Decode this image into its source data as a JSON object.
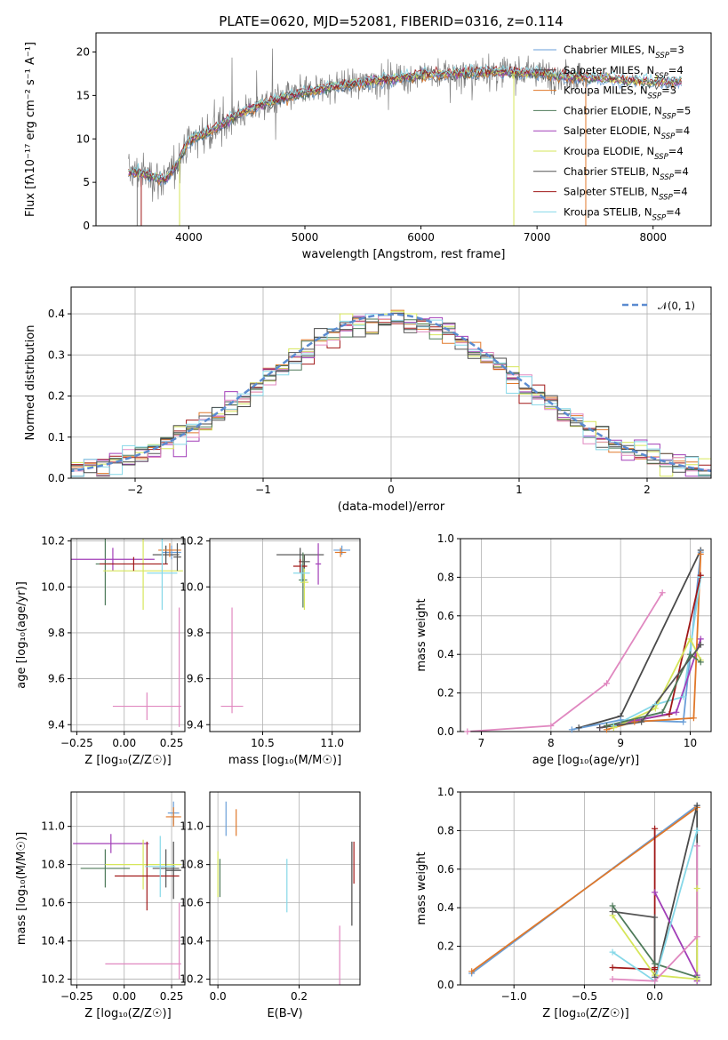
{
  "figure": {
    "title": "PLATE=0620, MJD=52081, FIBERID=0316, z=0.114"
  },
  "colors": {
    "chabrier_miles": "#6a9fd8",
    "salpeter_miles": "#4a4a4a",
    "kroupa_miles": "#e0782a",
    "chabrier_elodie": "#4e7a5a",
    "salpeter_elodie": "#a23fb8",
    "kroupa_elodie": "#d6e65a",
    "chabrier_stelib": "#555555",
    "salpeter_stelib": "#a01818",
    "kroupa_stelib": "#86d8e8",
    "extra_pink": "#e088c0",
    "data_grey": "#7f7f7f",
    "gauss": "#5b8bd0"
  },
  "chart_data": [
    {
      "type": "line",
      "id": "spectrum",
      "title": "PLATE=0620, MJD=52081, FIBERID=0316, z=0.114",
      "xlabel": "wavelength [Angstrom, rest frame]",
      "ylabel": "Flux [fλ10⁻¹⁷ erg cm⁻² s⁻¹ A⁻¹]",
      "xlim": [
        3200,
        8500
      ],
      "ylim": [
        0,
        22.2
      ],
      "xticks": [
        4000,
        5000,
        6000,
        7000,
        8000
      ],
      "yticks": [
        0,
        5,
        10,
        15,
        20
      ],
      "legend_position": "top-right",
      "series": [
        {
          "name": "Chabrier MILES, N_SSP=3",
          "color_key": "chabrier_miles"
        },
        {
          "name": "Salpeter MILES, N_SSP=4",
          "color_key": "salpeter_miles"
        },
        {
          "name": "Kroupa MILES, N_SSP=3",
          "color_key": "kroupa_miles"
        },
        {
          "name": "Chabrier ELODIE, N_SSP=5",
          "color_key": "chabrier_elodie"
        },
        {
          "name": "Salpeter ELODIE, N_SSP=4",
          "color_key": "salpeter_elodie"
        },
        {
          "name": "Kroupa ELODIE, N_SSP=4",
          "color_key": "kroupa_elodie"
        },
        {
          "name": "Chabrier STELIB, N_SSP=4",
          "color_key": "chabrier_stelib"
        },
        {
          "name": "Salpeter STELIB, N_SSP=4",
          "color_key": "salpeter_stelib"
        },
        {
          "name": "Kroupa STELIB, N_SSP=4",
          "color_key": "kroupa_stelib"
        }
      ],
      "continuum_x": [
        3500,
        3600,
        3700,
        3800,
        3900,
        4000,
        4200,
        4400,
        4600,
        4800,
        5000,
        5200,
        5500,
        5800,
        6000,
        6300,
        6600,
        7000,
        7200,
        7500,
        7800,
        8000,
        8250
      ],
      "continuum_y": [
        6.2,
        6.0,
        5.6,
        5.2,
        7.2,
        9.8,
        11.0,
        12.6,
        13.8,
        14.6,
        15.3,
        15.9,
        16.5,
        17.0,
        17.4,
        17.5,
        17.7,
        17.6,
        17.2,
        17.0,
        16.7,
        16.5,
        16.6
      ]
    },
    {
      "type": "histogram",
      "id": "residuals",
      "xlabel": "(data-model)/error",
      "ylabel": "Normed distribution",
      "xlim": [
        -2.5,
        2.5
      ],
      "ylim": [
        0,
        0.465
      ],
      "xticks": [
        -2,
        -1,
        0,
        1,
        2
      ],
      "yticks": [
        0.0,
        0.1,
        0.2,
        0.3,
        0.4
      ],
      "legend": [
        {
          "name": "𝒩(0, 1)",
          "style": "dashed",
          "color_key": "gauss"
        }
      ],
      "legend_position": "top-right",
      "bin_width": 0.1,
      "gaussian": {
        "mean": 0,
        "sigma": 1
      }
    },
    {
      "type": "scatter",
      "id": "age_vs_z",
      "xlabel": "Z [log₁₀(Z/Z☉)]",
      "ylabel": "age  [log₁₀(age/yr)]",
      "xlim": [
        -0.28,
        0.32
      ],
      "ylim": [
        9.37,
        10.21
      ],
      "xticks": [
        -0.25,
        0.0,
        0.25
      ],
      "yticks": [
        9.4,
        9.6,
        9.8,
        10.0,
        10.2
      ],
      "points": [
        {
          "c": "chabrier_miles",
          "x": 0.25,
          "y": 10.15,
          "xe": 0.05,
          "ye": 0.03
        },
        {
          "c": "salpeter_miles",
          "x": 0.22,
          "y": 10.14,
          "xe": 0.07,
          "ye": 0.04
        },
        {
          "c": "kroupa_miles",
          "x": 0.24,
          "y": 10.16,
          "xe": 0.06,
          "ye": 0.03
        },
        {
          "c": "chabrier_elodie",
          "x": -0.1,
          "y": 10.1,
          "xe": 0.05,
          "ye": 0.18
        },
        {
          "c": "salpeter_elodie",
          "x": -0.06,
          "y": 10.12,
          "xe": 0.22,
          "ye": 0.05
        },
        {
          "c": "kroupa_elodie",
          "x": 0.1,
          "y": 10.07,
          "xe": 0.21,
          "ye": 0.17
        },
        {
          "c": "chabrier_stelib",
          "x": 0.28,
          "y": 10.13,
          "xe": 0.02,
          "ye": 0.06
        },
        {
          "c": "salpeter_stelib",
          "x": 0.05,
          "y": 10.1,
          "xe": 0.18,
          "ye": 0.03
        },
        {
          "c": "kroupa_stelib",
          "x": 0.2,
          "y": 10.06,
          "xe": 0.08,
          "ye": 0.16
        },
        {
          "c": "extra_pink",
          "x": 0.12,
          "y": 9.48,
          "xe": 0.18,
          "ye": 0.06
        },
        {
          "c": "extra_pink",
          "x": 0.29,
          "y": 9.65,
          "xe": 0.0,
          "ye": 0.26
        }
      ]
    },
    {
      "type": "scatter",
      "id": "age_vs_mass",
      "xlabel": "mass [log₁₀(M/M☉)]",
      "xlim": [
        10.12,
        11.2
      ],
      "ylim": [
        9.37,
        10.21
      ],
      "xticks": [
        10.5,
        11.0
      ],
      "yticks": [
        9.4,
        9.6,
        9.8,
        10.0,
        10.2
      ],
      "points": [
        {
          "c": "chabrier_miles",
          "x": 11.07,
          "y": 10.16,
          "xe": 0.06,
          "ye": 0.02
        },
        {
          "c": "salpeter_miles",
          "x": 10.77,
          "y": 10.14,
          "xe": 0.17,
          "ye": 0.03
        },
        {
          "c": "kroupa_miles",
          "x": 11.06,
          "y": 10.15,
          "xe": 0.04,
          "ye": 0.02
        },
        {
          "c": "chabrier_elodie",
          "x": 10.79,
          "y": 10.03,
          "xe": 0.03,
          "ye": 0.12
        },
        {
          "c": "salpeter_elodie",
          "x": 10.9,
          "y": 10.1,
          "xe": 0.02,
          "ye": 0.09
        },
        {
          "c": "kroupa_elodie",
          "x": 10.8,
          "y": 10.02,
          "xe": 0.03,
          "ye": 0.12
        },
        {
          "c": "chabrier_stelib",
          "x": 10.8,
          "y": 10.11,
          "xe": 0.04,
          "ye": 0.03
        },
        {
          "c": "salpeter_stelib",
          "x": 10.77,
          "y": 10.09,
          "xe": 0.05,
          "ye": 0.03
        },
        {
          "c": "kroupa_stelib",
          "x": 10.78,
          "y": 10.06,
          "xe": 0.06,
          "ye": 0.04
        },
        {
          "c": "extra_pink",
          "x": 10.28,
          "y": 9.48,
          "xe": 0.08,
          "ye": 0.0
        },
        {
          "c": "extra_pink",
          "x": 10.28,
          "y": 9.68,
          "xe": 0.0,
          "ye": 0.23
        }
      ]
    },
    {
      "type": "line",
      "id": "mass_weight_vs_age",
      "xlabel": "age  [log₁₀(age/yr)]",
      "ylabel": "mass weight",
      "xlim": [
        6.7,
        10.3
      ],
      "ylim": [
        0,
        1
      ],
      "xticks": [
        7,
        8,
        9,
        10
      ],
      "yticks": [
        0.0,
        0.2,
        0.4,
        0.6,
        0.8,
        1.0
      ],
      "series": [
        {
          "c": "extra_pink",
          "x": [
            6.8,
            8.0,
            8.8,
            9.6
          ],
          "y": [
            0.0,
            0.03,
            0.25,
            0.72
          ]
        },
        {
          "c": "salpeter_miles",
          "x": [
            8.4,
            9.0,
            10.15
          ],
          "y": [
            0.02,
            0.08,
            0.94
          ]
        },
        {
          "c": "chabrier_miles",
          "x": [
            8.3,
            9.0,
            9.9,
            10.15
          ],
          "y": [
            0.01,
            0.06,
            0.05,
            0.93
          ]
        },
        {
          "c": "kroupa_miles",
          "x": [
            8.8,
            9.2,
            10.05,
            10.15
          ],
          "y": [
            0.01,
            0.05,
            0.07,
            0.92
          ]
        },
        {
          "c": "kroupa_stelib",
          "x": [
            8.9,
            9.5,
            9.9,
            10.15
          ],
          "y": [
            0.03,
            0.14,
            0.18,
            0.8
          ]
        },
        {
          "c": "salpeter_stelib",
          "x": [
            8.8,
            9.7,
            10.15
          ],
          "y": [
            0.03,
            0.09,
            0.81
          ]
        },
        {
          "c": "salpeter_elodie",
          "x": [
            8.7,
            9.8,
            10.15
          ],
          "y": [
            0.02,
            0.1,
            0.48
          ]
        },
        {
          "c": "kroupa_elodie",
          "x": [
            8.9,
            9.5,
            10.0,
            10.15
          ],
          "y": [
            0.02,
            0.12,
            0.48,
            0.37
          ]
        },
        {
          "c": "chabrier_elodie",
          "x": [
            8.8,
            9.6,
            10.0,
            10.15
          ],
          "y": [
            0.03,
            0.1,
            0.4,
            0.36
          ]
        },
        {
          "c": "chabrier_stelib",
          "x": [
            8.7,
            9.3,
            10.15
          ],
          "y": [
            0.02,
            0.05,
            0.45
          ]
        }
      ]
    },
    {
      "type": "scatter",
      "id": "mass_vs_z",
      "xlabel": "Z [log₁₀(Z/Z☉)]",
      "ylabel": "mass [log₁₀(M/M☉)]",
      "xlim": [
        -0.28,
        0.32
      ],
      "ylim": [
        10.17,
        11.18
      ],
      "xticks": [
        -0.25,
        0.0,
        0.25
      ],
      "yticks": [
        10.2,
        10.4,
        10.6,
        10.8,
        11.0
      ],
      "points": [
        {
          "c": "chabrier_miles",
          "x": 0.26,
          "y": 11.07,
          "xe": 0.03,
          "ye": 0.06
        },
        {
          "c": "salpeter_miles",
          "x": 0.26,
          "y": 10.77,
          "xe": 0.04,
          "ye": 0.15
        },
        {
          "c": "kroupa_miles",
          "x": 0.26,
          "y": 11.05,
          "xe": 0.04,
          "ye": 0.05
        },
        {
          "c": "chabrier_elodie",
          "x": -0.1,
          "y": 10.78,
          "xe": 0.13,
          "ye": 0.1
        },
        {
          "c": "salpeter_elodie",
          "x": -0.07,
          "y": 10.91,
          "xe": 0.2,
          "ye": 0.05
        },
        {
          "c": "kroupa_elodie",
          "x": 0.1,
          "y": 10.8,
          "xe": 0.2,
          "ye": 0.13
        },
        {
          "c": "chabrier_stelib",
          "x": 0.22,
          "y": 10.78,
          "xe": 0.07,
          "ye": 0.1
        },
        {
          "c": "salpeter_stelib",
          "x": 0.12,
          "y": 10.74,
          "xe": 0.17,
          "ye": 0.18
        },
        {
          "c": "kroupa_stelib",
          "x": 0.19,
          "y": 10.79,
          "xe": 0.08,
          "ye": 0.16
        },
        {
          "c": "extra_pink",
          "x": 0.1,
          "y": 10.28,
          "xe": 0.2,
          "ye": 0.0
        },
        {
          "c": "extra_pink",
          "x": 0.29,
          "y": 10.4,
          "xe": 0.0,
          "ye": 0.2
        }
      ]
    },
    {
      "type": "scatter",
      "id": "mass_vs_ebv",
      "xlabel": "E(B-V)",
      "xlim": [
        -0.02,
        0.35
      ],
      "ylim": [
        10.17,
        11.18
      ],
      "xticks": [
        0.0,
        0.2
      ],
      "yticks": [
        10.2,
        10.4,
        10.6,
        10.8,
        11.0
      ],
      "points": [
        {
          "c": "chabrier_miles",
          "x": 0.02,
          "y": 11.04,
          "ye": 0.09
        },
        {
          "c": "kroupa_miles",
          "x": 0.045,
          "y": 11.02,
          "ye": 0.07
        },
        {
          "c": "chabrier_elodie",
          "x": 0.005,
          "y": 10.73,
          "ye": 0.1
        },
        {
          "c": "kroupa_elodie",
          "x": 0.0,
          "y": 10.75,
          "ye": 0.12
        },
        {
          "c": "kroupa_stelib",
          "x": 0.17,
          "y": 10.69,
          "ye": 0.14
        },
        {
          "c": "salpeter_miles",
          "x": 0.33,
          "y": 10.7,
          "ye": 0.22
        },
        {
          "c": "salpeter_stelib",
          "x": 0.335,
          "y": 10.81,
          "ye": 0.11
        },
        {
          "c": "extra_pink",
          "x": 0.3,
          "y": 10.3,
          "ye": 0.18
        }
      ]
    },
    {
      "type": "line",
      "id": "mass_weight_vs_z",
      "xlabel": "Z [log₁₀(Z/Z☉)]",
      "ylabel": "mass weight",
      "xlim": [
        -1.38,
        0.4
      ],
      "ylim": [
        0,
        1
      ],
      "xticks": [
        -1.0,
        -0.5,
        0.0
      ],
      "yticks": [
        0.0,
        0.2,
        0.4,
        0.6,
        0.8,
        1.0
      ],
      "series": [
        {
          "c": "chabrier_miles",
          "x": [
            -1.3,
            0.3
          ],
          "y": [
            0.06,
            0.93
          ]
        },
        {
          "c": "kroupa_miles",
          "x": [
            -1.3,
            0.3
          ],
          "y": [
            0.07,
            0.92
          ]
        },
        {
          "c": "salpeter_miles",
          "x": [
            0.0,
            0.3,
            0.3
          ],
          "y": [
            0.02,
            0.93,
            0.03
          ]
        },
        {
          "c": "salpeter_stelib",
          "x": [
            -0.3,
            0.0,
            0.0,
            0.0
          ],
          "y": [
            0.09,
            0.08,
            0.81,
            0.09
          ]
        },
        {
          "c": "salpeter_elodie",
          "x": [
            0.0,
            0.3,
            0.3
          ],
          "y": [
            0.48,
            0.05,
            0.02
          ]
        },
        {
          "c": "chabrier_elodie",
          "x": [
            -0.3,
            0.0,
            0.3
          ],
          "y": [
            0.41,
            0.11,
            0.04
          ]
        },
        {
          "c": "kroupa_elodie",
          "x": [
            -0.3,
            0.0,
            0.3,
            0.3
          ],
          "y": [
            0.36,
            0.05,
            0.03,
            0.5
          ]
        },
        {
          "c": "kroupa_stelib",
          "x": [
            -0.3,
            0.0,
            0.3
          ],
          "y": [
            0.17,
            0.02,
            0.8
          ]
        },
        {
          "c": "chabrier_stelib",
          "x": [
            -0.3,
            0.0,
            0.0
          ],
          "y": [
            0.38,
            0.35,
            0.04
          ]
        },
        {
          "c": "extra_pink",
          "x": [
            -0.3,
            0.0,
            0.3,
            0.3
          ],
          "y": [
            0.03,
            0.02,
            0.25,
            0.72
          ]
        }
      ]
    }
  ]
}
